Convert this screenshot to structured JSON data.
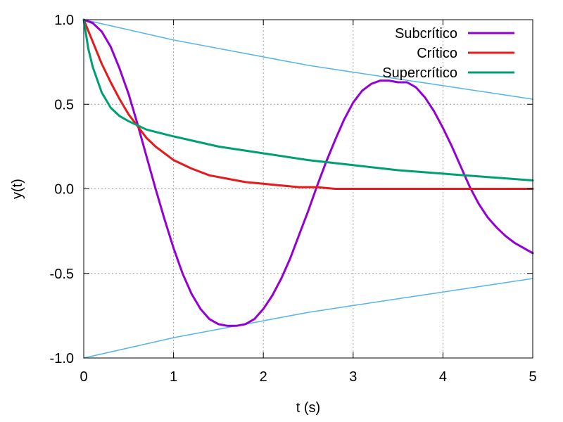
{
  "chart_data": {
    "type": "line",
    "xlabel": "t (s)",
    "ylabel": "y(t)",
    "xlim": [
      0,
      5
    ],
    "ylim": [
      -1.0,
      1.0
    ],
    "grid": true,
    "legend_position": "top-right",
    "x_ticks": [
      0,
      1,
      2,
      3,
      4,
      5
    ],
    "x_tick_labels": [
      "0",
      "1",
      "2",
      "3",
      "4",
      "5"
    ],
    "y_ticks": [
      -1.0,
      -0.5,
      0.0,
      0.5,
      1.0
    ],
    "y_tick_labels": [
      "-1.0",
      "-0.5",
      "0.0",
      "0.5",
      "1.0"
    ],
    "series": [
      {
        "name": "Subcrítico",
        "color": "#9400d3",
        "in_legend": true,
        "x": [
          0,
          0.1,
          0.2,
          0.3,
          0.4,
          0.5,
          0.6,
          0.7,
          0.8,
          0.9,
          1.0,
          1.1,
          1.2,
          1.3,
          1.4,
          1.5,
          1.6,
          1.7,
          1.8,
          1.9,
          2.0,
          2.1,
          2.2,
          2.3,
          2.4,
          2.5,
          2.6,
          2.7,
          2.8,
          2.9,
          3.0,
          3.1,
          3.2,
          3.3,
          3.4,
          3.5,
          3.6,
          3.7,
          3.8,
          3.9,
          4.0,
          4.1,
          4.2,
          4.3,
          4.4,
          4.5,
          4.6,
          4.7,
          4.8,
          4.9,
          5.0
        ],
        "y": [
          1.0,
          0.98,
          0.93,
          0.84,
          0.71,
          0.56,
          0.38,
          0.19,
          0.0,
          -0.18,
          -0.35,
          -0.5,
          -0.62,
          -0.71,
          -0.77,
          -0.8,
          -0.81,
          -0.81,
          -0.8,
          -0.77,
          -0.71,
          -0.63,
          -0.53,
          -0.41,
          -0.27,
          -0.13,
          0.02,
          0.16,
          0.29,
          0.41,
          0.51,
          0.58,
          0.62,
          0.64,
          0.64,
          0.63,
          0.63,
          0.6,
          0.54,
          0.46,
          0.36,
          0.25,
          0.13,
          0.01,
          -0.09,
          -0.17,
          -0.23,
          -0.28,
          -0.32,
          -0.35,
          -0.38
        ]
      },
      {
        "name": "Crítico",
        "color": "#e41a1c",
        "in_legend": true,
        "x": [
          0,
          0.1,
          0.2,
          0.3,
          0.4,
          0.5,
          0.6,
          0.7,
          0.8,
          0.9,
          1.0,
          1.2,
          1.4,
          1.6,
          1.8,
          2.0,
          2.2,
          2.4,
          2.6,
          2.8,
          3.0,
          3.5,
          4.0,
          4.5,
          5.0
        ],
        "y": [
          1.0,
          0.87,
          0.74,
          0.63,
          0.53,
          0.44,
          0.37,
          0.3,
          0.25,
          0.21,
          0.17,
          0.12,
          0.08,
          0.06,
          0.04,
          0.03,
          0.02,
          0.01,
          0.01,
          0.0,
          0.0,
          0.0,
          0.0,
          0.0,
          0.0
        ]
      },
      {
        "name": "Supercrítico",
        "color": "#009e73",
        "in_legend": true,
        "x": [
          0,
          0.05,
          0.1,
          0.2,
          0.3,
          0.4,
          0.5,
          0.7,
          1.0,
          1.5,
          2.0,
          2.5,
          3.0,
          3.5,
          4.0,
          4.5,
          5.0
        ],
        "y": [
          1.0,
          0.83,
          0.72,
          0.57,
          0.48,
          0.43,
          0.4,
          0.35,
          0.31,
          0.25,
          0.21,
          0.17,
          0.14,
          0.11,
          0.09,
          0.07,
          0.05
        ]
      },
      {
        "name": "",
        "color": "#56b4e9",
        "in_legend": false,
        "x": [
          0,
          0.5,
          1.0,
          1.5,
          2.0,
          2.5,
          3.0,
          3.5,
          4.0,
          4.5,
          5.0
        ],
        "y": [
          1.0,
          0.94,
          0.88,
          0.83,
          0.78,
          0.73,
          0.69,
          0.65,
          0.61,
          0.57,
          0.53
        ]
      },
      {
        "name": "",
        "color": "#56b4e9",
        "in_legend": false,
        "x": [
          0,
          0.5,
          1.0,
          1.5,
          2.0,
          2.5,
          3.0,
          3.5,
          4.0,
          4.5,
          5.0
        ],
        "y": [
          -1.0,
          -0.94,
          -0.88,
          -0.83,
          -0.78,
          -0.73,
          -0.69,
          -0.65,
          -0.61,
          -0.57,
          -0.53
        ]
      }
    ]
  }
}
